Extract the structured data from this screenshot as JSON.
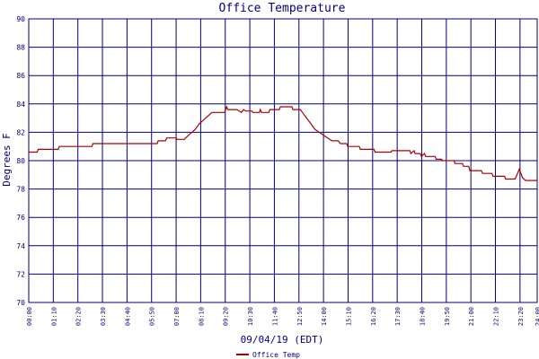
{
  "chart_data": {
    "type": "line",
    "title": "Office Temperature",
    "xlabel": "09/04/19 (EDT)",
    "ylabel": "Degrees F",
    "ylim": [
      70,
      90
    ],
    "yticks": [
      70,
      72,
      74,
      76,
      78,
      80,
      82,
      84,
      86,
      88,
      90
    ],
    "xlim": [
      0,
      24.15
    ],
    "xticks": [
      {
        "h": 0.0,
        "label": "00:00"
      },
      {
        "h": 1.1667,
        "label": "01:10"
      },
      {
        "h": 2.3333,
        "label": "02:20"
      },
      {
        "h": 3.5,
        "label": "03:30"
      },
      {
        "h": 4.6667,
        "label": "04:40"
      },
      {
        "h": 5.8333,
        "label": "05:50"
      },
      {
        "h": 7.0,
        "label": "07:00"
      },
      {
        "h": 8.1667,
        "label": "08:10"
      },
      {
        "h": 9.3333,
        "label": "09:20"
      },
      {
        "h": 10.5,
        "label": "10:30"
      },
      {
        "h": 11.6667,
        "label": "11:40"
      },
      {
        "h": 12.8333,
        "label": "12:50"
      },
      {
        "h": 14.0,
        "label": "14:00"
      },
      {
        "h": 15.1667,
        "label": "15:10"
      },
      {
        "h": 16.3333,
        "label": "16:20"
      },
      {
        "h": 17.5,
        "label": "17:30"
      },
      {
        "h": 18.6667,
        "label": "18:40"
      },
      {
        "h": 19.8333,
        "label": "19:50"
      },
      {
        "h": 21.0,
        "label": "21:00"
      },
      {
        "h": 22.1667,
        "label": "22:10"
      },
      {
        "h": 23.3333,
        "label": "23:20"
      },
      {
        "h": 24.15,
        "label": "24:00"
      }
    ],
    "grid": true,
    "legend_position": "bottom-left",
    "colors": {
      "line": "#aa0000",
      "grid": "#000080",
      "text": "#000080"
    },
    "series": [
      {
        "name": "Office Temp",
        "color": "#aa0000",
        "points": [
          [
            0.0,
            80.6
          ],
          [
            0.4,
            80.6
          ],
          [
            0.45,
            80.8
          ],
          [
            1.4,
            80.8
          ],
          [
            1.45,
            81.0
          ],
          [
            3.0,
            81.0
          ],
          [
            3.05,
            81.2
          ],
          [
            6.1,
            81.2
          ],
          [
            6.15,
            81.4
          ],
          [
            6.5,
            81.4
          ],
          [
            6.55,
            81.6
          ],
          [
            7.0,
            81.6
          ],
          [
            7.05,
            81.5
          ],
          [
            7.4,
            81.5
          ],
          [
            7.45,
            81.6
          ],
          [
            7.6,
            81.8
          ],
          [
            7.75,
            82.0
          ],
          [
            7.9,
            82.2
          ],
          [
            8.0,
            82.4
          ],
          [
            8.1,
            82.6
          ],
          [
            8.25,
            82.8
          ],
          [
            8.4,
            83.0
          ],
          [
            8.55,
            83.2
          ],
          [
            8.7,
            83.4
          ],
          [
            9.0,
            83.4
          ],
          [
            9.3,
            83.4
          ],
          [
            9.35,
            83.6
          ],
          [
            9.4,
            83.8
          ],
          [
            9.45,
            83.6
          ],
          [
            9.9,
            83.6
          ],
          [
            10.0,
            83.5
          ],
          [
            10.1,
            83.4
          ],
          [
            10.2,
            83.6
          ],
          [
            10.3,
            83.5
          ],
          [
            10.6,
            83.5
          ],
          [
            10.65,
            83.4
          ],
          [
            10.95,
            83.4
          ],
          [
            11.0,
            83.6
          ],
          [
            11.05,
            83.4
          ],
          [
            11.4,
            83.4
          ],
          [
            11.45,
            83.6
          ],
          [
            11.9,
            83.6
          ],
          [
            11.95,
            83.8
          ],
          [
            12.5,
            83.8
          ],
          [
            12.55,
            83.6
          ],
          [
            12.9,
            83.6
          ],
          [
            13.0,
            83.4
          ],
          [
            13.1,
            83.2
          ],
          [
            13.2,
            83.0
          ],
          [
            13.3,
            82.8
          ],
          [
            13.4,
            82.6
          ],
          [
            13.5,
            82.4
          ],
          [
            13.6,
            82.2
          ],
          [
            13.8,
            82.0
          ],
          [
            14.0,
            81.8
          ],
          [
            14.2,
            81.6
          ],
          [
            14.4,
            81.4
          ],
          [
            14.7,
            81.4
          ],
          [
            14.8,
            81.2
          ],
          [
            15.1,
            81.2
          ],
          [
            15.15,
            81.0
          ],
          [
            15.7,
            81.0
          ],
          [
            15.75,
            80.8
          ],
          [
            16.4,
            80.8
          ],
          [
            16.45,
            80.6
          ],
          [
            17.2,
            80.6
          ],
          [
            17.25,
            80.7
          ],
          [
            18.1,
            80.7
          ],
          [
            18.15,
            80.5
          ],
          [
            18.3,
            80.7
          ],
          [
            18.35,
            80.5
          ],
          [
            18.6,
            80.5
          ],
          [
            18.65,
            80.3
          ],
          [
            18.8,
            80.5
          ],
          [
            18.85,
            80.3
          ],
          [
            19.3,
            80.3
          ],
          [
            19.35,
            80.1
          ],
          [
            19.6,
            80.1
          ],
          [
            19.65,
            80.0
          ],
          [
            20.2,
            80.0
          ],
          [
            20.25,
            79.8
          ],
          [
            20.6,
            79.8
          ],
          [
            20.65,
            79.6
          ],
          [
            20.9,
            79.6
          ],
          [
            20.95,
            79.3
          ],
          [
            21.5,
            79.3
          ],
          [
            21.55,
            79.1
          ],
          [
            22.0,
            79.1
          ],
          [
            22.05,
            78.9
          ],
          [
            22.6,
            78.9
          ],
          [
            22.65,
            78.7
          ],
          [
            23.1,
            78.7
          ],
          [
            23.3,
            79.4
          ],
          [
            23.45,
            78.8
          ],
          [
            23.6,
            78.6
          ],
          [
            24.15,
            78.6
          ]
        ]
      }
    ]
  }
}
